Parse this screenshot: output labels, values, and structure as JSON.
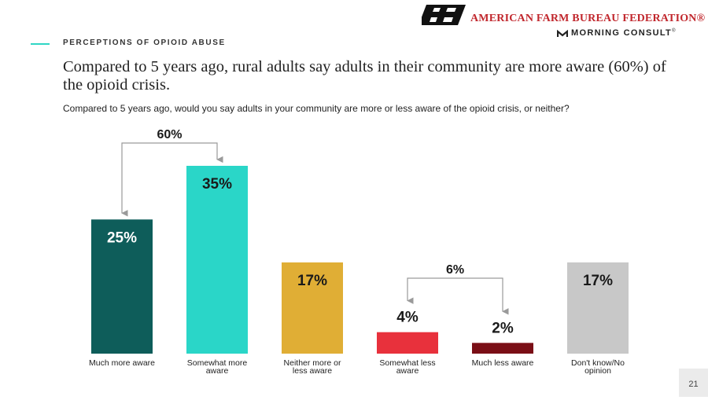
{
  "header": {
    "section_label": "PERCEPTIONS OF OPIOID ABUSE",
    "brand_name": "AMERICAN FARM BUREAU FEDERATION®",
    "partner_name": "MORNING CONSULT",
    "partner_mark": "®"
  },
  "headline": "Compared to 5 years ago, rural adults say adults in their community are more aware (60%) of the opioid crisis.",
  "question": "Compared to 5 years ago, would you say adults in your community are more or less aware of the opioid crisis, or neither?",
  "chart_data": {
    "type": "bar",
    "categories": [
      "Much more aware",
      "Somewhat more aware",
      "Neither more or less aware",
      "Somewhat less aware",
      "Much less aware",
      "Don't know/No opinion"
    ],
    "category_lines": [
      [
        "Much more aware"
      ],
      [
        "Somewhat more",
        "aware"
      ],
      [
        "Neither more or",
        "less aware"
      ],
      [
        "Somewhat less",
        "aware"
      ],
      [
        "Much less aware"
      ],
      [
        "Don't know/No",
        "opinion"
      ]
    ],
    "values": [
      25,
      35,
      17,
      4,
      2,
      17
    ],
    "value_labels": [
      "25%",
      "35%",
      "17%",
      "4%",
      "2%",
      "17%"
    ],
    "colors": [
      "#0e5d5a",
      "#2ad6c8",
      "#e0ae35",
      "#e8313c",
      "#7a0e16",
      "#c8c8c8"
    ],
    "label_positions": [
      "inside",
      "inside",
      "inside",
      "above",
      "above",
      "inside"
    ],
    "label_colors": [
      "#ffffff",
      "#1a1a1a",
      "#1a1a1a",
      "#1a1a1a",
      "#1a1a1a",
      "#1a1a1a"
    ],
    "ylim": [
      0,
      35
    ],
    "groupings": [
      {
        "label": "60%",
        "from": 0,
        "to": 1
      },
      {
        "label": "6%",
        "from": 3,
        "to": 4
      }
    ]
  },
  "page_number": "21"
}
